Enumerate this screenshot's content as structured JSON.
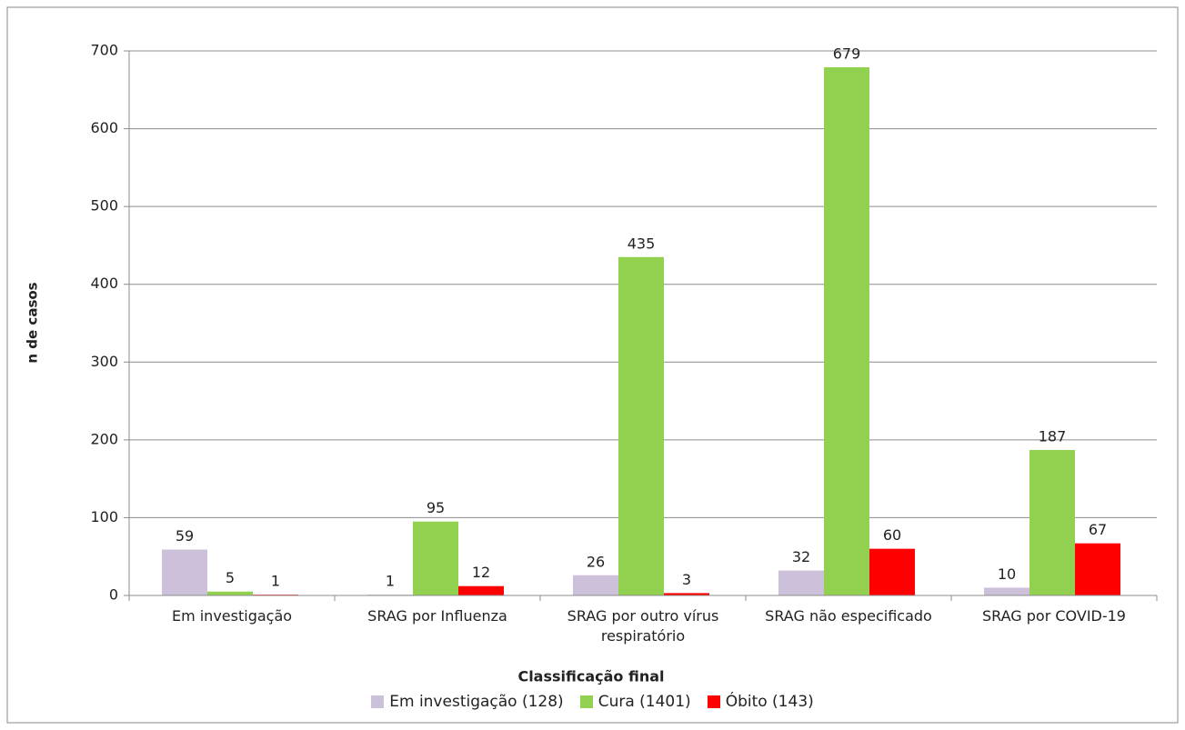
{
  "chart_data": {
    "type": "bar",
    "y_label": "n de casos",
    "x_label": "Classificação final",
    "categories": [
      "Em investigação",
      "SRAG por Influenza",
      "SRAG por outro vírus respiratório",
      "SRAG não especificado",
      "SRAG por COVID-19"
    ],
    "series": [
      {
        "name": "Em investigação (128)",
        "color": "#ccc0da",
        "values": [
          59,
          1,
          26,
          32,
          10
        ]
      },
      {
        "name": "Cura (1401)",
        "color": "#92d050",
        "values": [
          5,
          95,
          435,
          679,
          187
        ]
      },
      {
        "name": "Óbito (143)",
        "color": "#ff0000",
        "values": [
          1,
          12,
          3,
          60,
          67
        ]
      }
    ],
    "ylim": [
      0,
      700
    ],
    "yticks": [
      0,
      100,
      200,
      300,
      400,
      500,
      600,
      700
    ],
    "grid": true,
    "legend": "bottom"
  }
}
